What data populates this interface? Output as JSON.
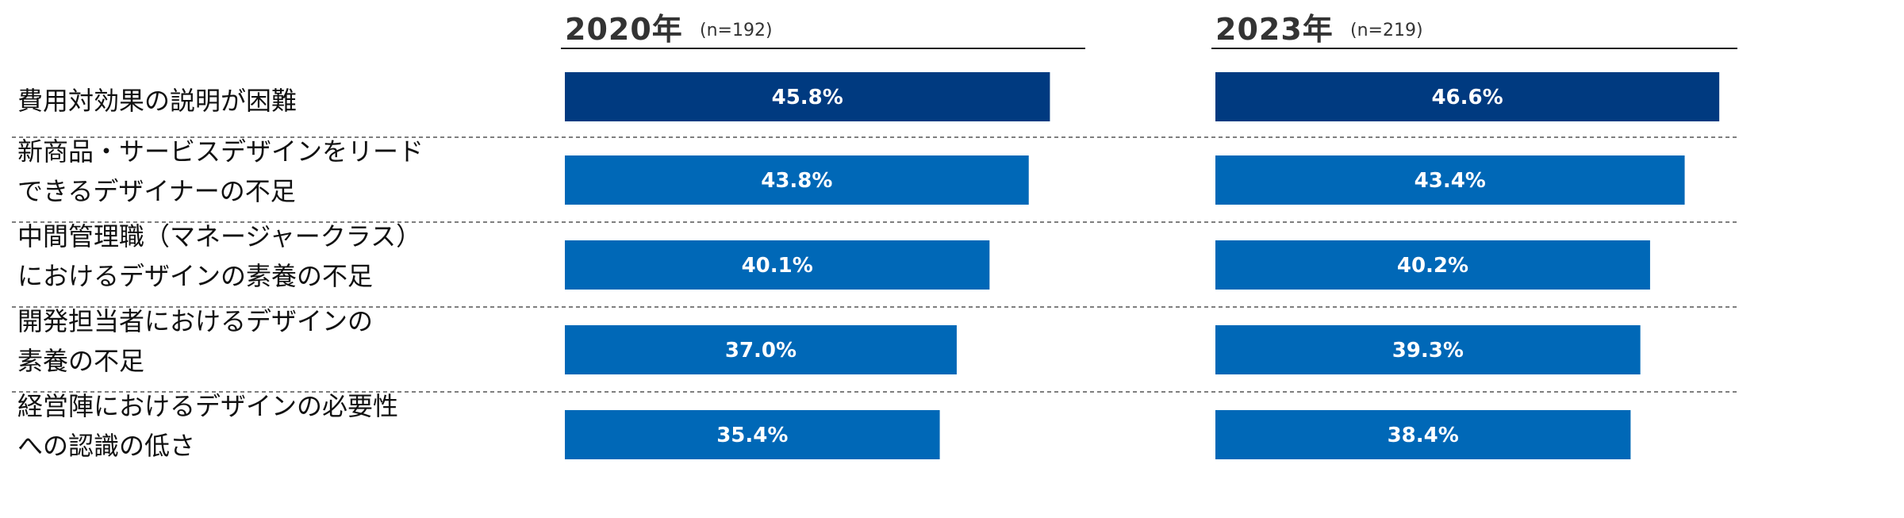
{
  "chart_data": {
    "type": "bar",
    "categories": [
      [
        "費用対効果の説明が困難"
      ],
      [
        "新商品・サービスデザインをリード",
        "できるデザイナーの不足"
      ],
      [
        "中間管理職（マネージャークラス）",
        "におけるデザインの素養の不足"
      ],
      [
        "開発担当者におけるデザインの",
        "素養の不足"
      ],
      [
        "経営陣におけるデザインの必要性",
        "への認識の低さ"
      ]
    ],
    "series": [
      {
        "name": "2020年",
        "n": "(n=192)",
        "values": [
          45.8,
          43.8,
          40.1,
          37.0,
          35.4
        ],
        "labels": [
          "45.8%",
          "43.8%",
          "40.1%",
          "37.0%",
          "35.4%"
        ]
      },
      {
        "name": "2023年",
        "n": "(n=219)",
        "values": [
          46.6,
          43.4,
          40.2,
          39.3,
          38.4
        ],
        "labels": [
          "46.6%",
          "43.4%",
          "40.2%",
          "39.3%",
          "38.4%"
        ]
      }
    ],
    "xlim": [
      0,
      50
    ],
    "grid": false,
    "legend": "none",
    "colors": {
      "highlight": "#003A80",
      "bar": "#0068B7",
      "text": "#333333"
    }
  }
}
